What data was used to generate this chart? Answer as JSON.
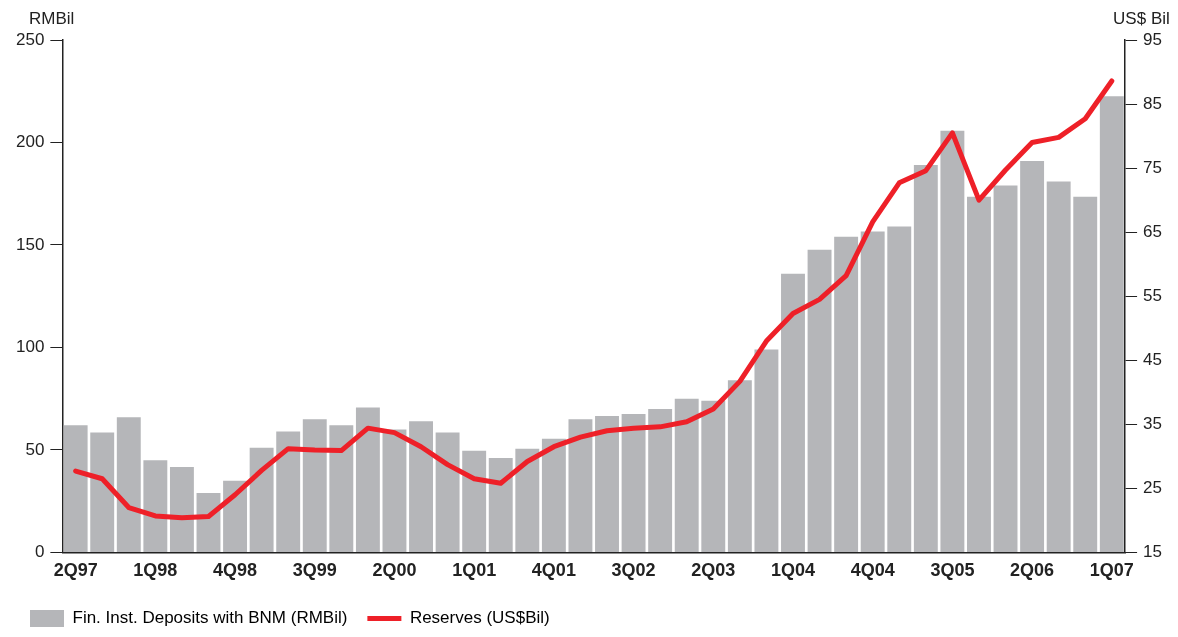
{
  "chart_data": {
    "type": "bar",
    "ylabel": "RMBil",
    "y2label": "US$ Bil",
    "categories": [
      "2Q97",
      null,
      null,
      "1Q98",
      null,
      null,
      "4Q98",
      null,
      null,
      "3Q99",
      null,
      null,
      "2Q00",
      null,
      null,
      "1Q01",
      null,
      null,
      "4Q01",
      null,
      null,
      "3Q02",
      null,
      null,
      "2Q03",
      null,
      null,
      "1Q04",
      null,
      null,
      "4Q04",
      null,
      null,
      "3Q05",
      null,
      null,
      "2Q06",
      null,
      null,
      "1Q07"
    ],
    "series": [
      {
        "name": "Fin. Inst. Deposits with BNM (RMBil)",
        "color": "#b5b6b9",
        "values": [
          62,
          58.5,
          66,
          45,
          41.7,
          29,
          35,
          51,
          59,
          65,
          62,
          70.7,
          60,
          64,
          58.5,
          49.6,
          46,
          50.6,
          55.4,
          65,
          66.5,
          67.5,
          70,
          75,
          74,
          84,
          99,
          136,
          147.7,
          154,
          156.6,
          159,
          189,
          205.7,
          173.5,
          179,
          191,
          181,
          173.5,
          222.6
        ]
      },
      {
        "name": "Reserves (US$Bil)",
        "type": "line",
        "axis": "y2",
        "color": "#ee2028",
        "values": [
          27.7,
          26.5,
          22,
          20.7,
          20.4,
          20.6,
          24,
          27.8,
          31.2,
          31,
          30.9,
          34.4,
          33.7,
          31.5,
          28.7,
          26.5,
          25.8,
          29.2,
          31.5,
          33,
          34,
          34.4,
          34.6,
          35.4,
          37.4,
          41.7,
          48,
          52.3,
          54.5,
          58.2,
          66.6,
          72.7,
          74.6,
          80.5,
          70,
          74.7,
          79,
          79.8,
          82.7,
          88.6
        ]
      }
    ],
    "ylim": [
      0,
      250
    ],
    "yticks": [
      0,
      50,
      100,
      150,
      200,
      250
    ],
    "y2lim": [
      15,
      95
    ],
    "y2ticks": [
      15,
      25,
      35,
      45,
      55,
      65,
      75,
      85,
      95
    ],
    "grid": false,
    "legend": "bottom left",
    "marker": "none",
    "line_style": "solid"
  }
}
